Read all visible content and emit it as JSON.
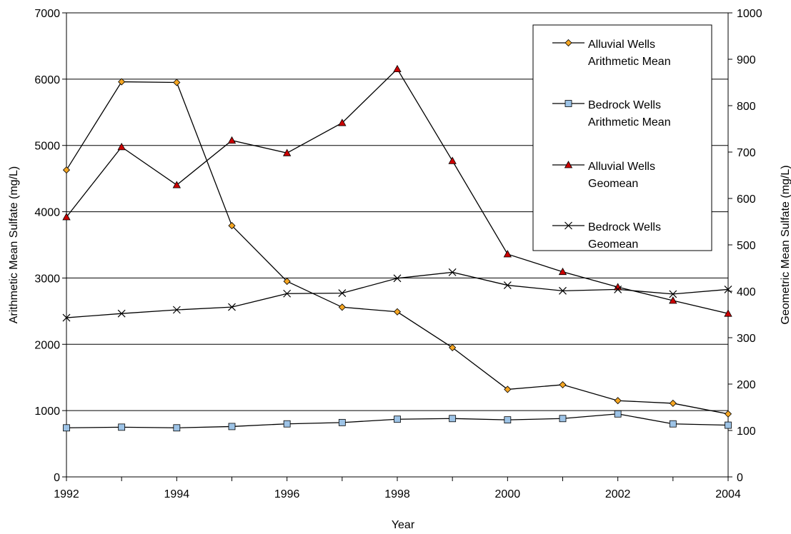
{
  "chart_data": {
    "type": "line",
    "x": [
      1992,
      1993,
      1994,
      1995,
      1996,
      1997,
      1998,
      1999,
      2000,
      2001,
      2002,
      2003,
      2004
    ],
    "x_ticks": [
      "1992",
      "1994",
      "1996",
      "1998",
      "2000",
      "2002",
      "2004"
    ],
    "xlabel": "Year",
    "ylabel_left": "Arithmetic Mean Sulfate (mg/L)",
    "ylabel_right": "Geometric Mean Sulfate (mg/L)",
    "ylim_left": [
      0,
      7000
    ],
    "ylim_right": [
      0,
      1000
    ],
    "y_ticks_left": [
      "0",
      "1000",
      "2000",
      "3000",
      "4000",
      "5000",
      "6000",
      "7000"
    ],
    "y_ticks_right": [
      "0",
      "100",
      "200",
      "300",
      "400",
      "500",
      "600",
      "700",
      "800",
      "900",
      "1000"
    ],
    "grid": "horizontal",
    "legend_position": "top-right",
    "series": [
      {
        "name_line1": "Alluvial Wells",
        "name_line2": "Arithmetic Mean",
        "axis": "left",
        "marker": "diamond",
        "color": "#F5A623",
        "values": [
          4630,
          5960,
          5950,
          3790,
          2950,
          2560,
          2490,
          1950,
          1320,
          1390,
          1150,
          1110,
          950
        ]
      },
      {
        "name_line1": "Bedrock Wells",
        "name_line2": "Arithmetic Mean",
        "axis": "left",
        "marker": "square",
        "color": "#9DC3E6",
        "values": [
          740,
          750,
          740,
          760,
          800,
          820,
          870,
          880,
          860,
          880,
          950,
          800,
          780
        ]
      },
      {
        "name_line1": "Alluvial Wells",
        "name_line2": "Geomean",
        "axis": "right",
        "marker": "triangle",
        "color": "#CC0000",
        "values": [
          560,
          711,
          629,
          725,
          698,
          763,
          879,
          681,
          480,
          442,
          409,
          380,
          352
        ]
      },
      {
        "name_line1": "Bedrock Wells",
        "name_line2": "Geomean",
        "axis": "right",
        "marker": "x",
        "color": "#000000",
        "values": [
          343,
          352,
          360,
          366,
          395,
          396,
          428,
          441,
          413,
          401,
          404,
          394,
          404
        ]
      }
    ]
  }
}
